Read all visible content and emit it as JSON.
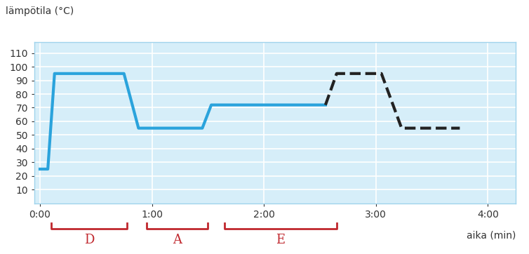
{
  "chart_data": {
    "type": "line",
    "y_label": "lämpötila (°C)",
    "x_label": "aika (min)",
    "series": [
      {
        "x": [
          0,
          0.07,
          0.13,
          0.75,
          0.88,
          1.45,
          1.53,
          2.55
        ],
        "values": [
          25,
          25,
          95,
          95,
          55,
          55,
          72,
          72
        ],
        "color": "#2aa3dc",
        "line_style": "solid"
      },
      {
        "x": [
          2.55,
          2.65,
          3.05,
          3.23,
          3.75
        ],
        "values": [
          72,
          95,
          95,
          55,
          55
        ],
        "color": "#222222",
        "line_style": "dashed"
      }
    ],
    "xlim": [
      -0.05,
      4.25
    ],
    "xticks": [
      {
        "value": 0,
        "label": "0:00"
      },
      {
        "value": 1,
        "label": "1:00"
      },
      {
        "value": 2,
        "label": "2:00"
      },
      {
        "value": 3,
        "label": "3:00"
      },
      {
        "value": 4,
        "label": "4:00"
      }
    ],
    "ylim": [
      0,
      118
    ],
    "yticks": [
      10,
      20,
      30,
      40,
      50,
      60,
      70,
      80,
      90,
      100,
      110
    ],
    "grid": true,
    "annotations": [
      {
        "text": "D",
        "x": [
          0.1,
          0.78
        ],
        "color": "#c0272d"
      },
      {
        "text": "A",
        "x": [
          0.95,
          1.5
        ],
        "color": "#c0272d"
      },
      {
        "text": "E",
        "x": [
          1.65,
          2.65
        ],
        "color": "#c0272d"
      }
    ]
  }
}
